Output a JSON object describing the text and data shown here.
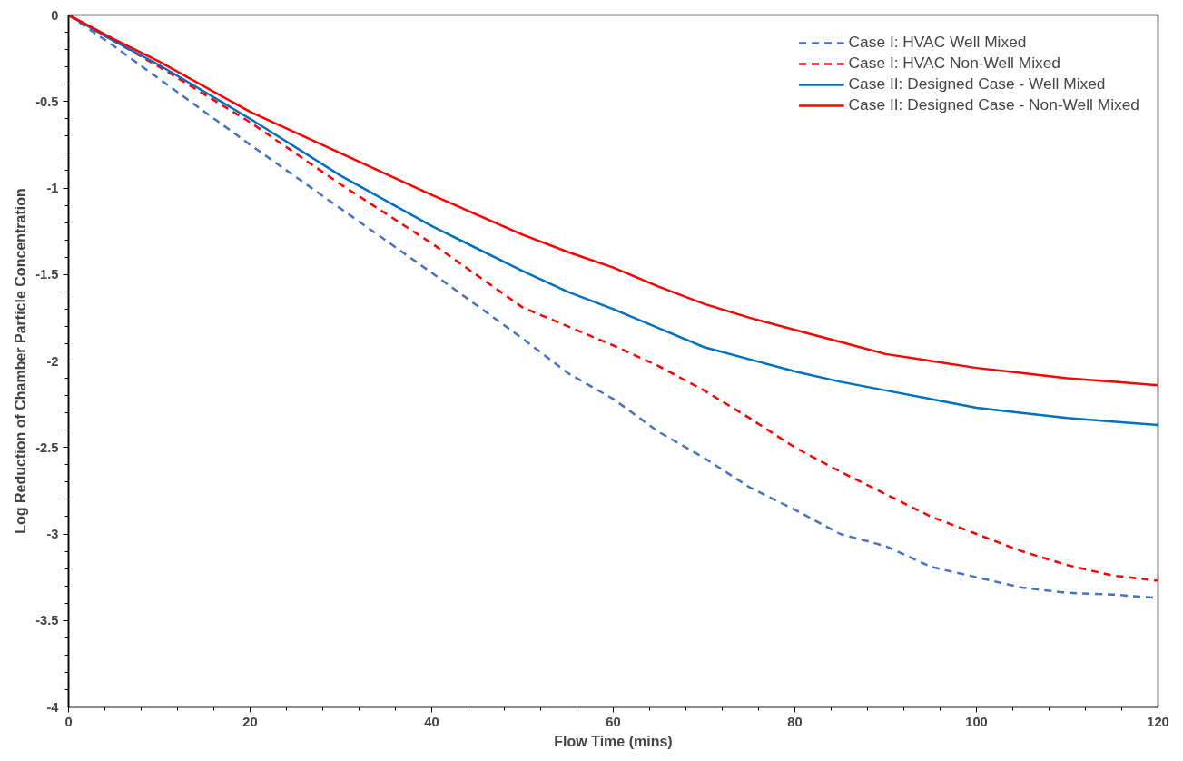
{
  "chart_data": {
    "type": "line",
    "xlabel": "Flow Time (mins)",
    "ylabel": "Log Reduction of Chamber Particle Concentration",
    "xlim": [
      0,
      120
    ],
    "ylim": [
      -4,
      0
    ],
    "xticks": [
      0,
      20,
      40,
      60,
      80,
      100,
      120
    ],
    "yticks": [
      -4,
      -3.5,
      -3,
      -2.5,
      -2,
      -1.5,
      -1,
      -0.5,
      0
    ],
    "x": [
      0,
      5,
      10,
      20,
      30,
      40,
      50,
      55,
      60,
      65,
      70,
      75,
      80,
      85,
      90,
      95,
      100,
      105,
      110,
      115,
      120
    ],
    "series": [
      {
        "name": "Case I: HVAC Well Mixed",
        "color": "#4472c4",
        "line_style": "dashed",
        "values": [
          0,
          -0.18,
          -0.37,
          -0.75,
          -1.12,
          -1.49,
          -1.87,
          -2.07,
          -2.22,
          -2.41,
          -2.56,
          -2.73,
          -2.86,
          -3.0,
          -3.07,
          -3.19,
          -3.25,
          -3.31,
          -3.34,
          -3.35,
          -3.37
        ]
      },
      {
        "name": "Case I: HVAC Non-Well Mixed",
        "color": "#ff0000",
        "line_style": "dashed",
        "values": [
          0,
          -0.15,
          -0.3,
          -0.62,
          -0.98,
          -1.32,
          -1.69,
          -1.8,
          -1.91,
          -2.03,
          -2.17,
          -2.33,
          -2.5,
          -2.64,
          -2.77,
          -2.9,
          -3.0,
          -3.1,
          -3.18,
          -3.24,
          -3.27
        ]
      },
      {
        "name": "Case II: Designed Case - Well Mixed",
        "color": "#0070c0",
        "line_style": "solid",
        "values": [
          0,
          -0.15,
          -0.29,
          -0.6,
          -0.93,
          -1.22,
          -1.48,
          -1.6,
          -1.7,
          -1.81,
          -1.92,
          -1.99,
          -2.06,
          -2.12,
          -2.17,
          -2.22,
          -2.27,
          -2.3,
          -2.33,
          -2.35,
          -2.37
        ]
      },
      {
        "name": "Case II: Designed Case - Non-Well Mixed",
        "color": "#ff0000",
        "line_style": "solid",
        "values": [
          0,
          -0.14,
          -0.27,
          -0.56,
          -0.8,
          -1.04,
          -1.27,
          -1.37,
          -1.46,
          -1.57,
          -1.67,
          -1.75,
          -1.82,
          -1.89,
          -1.96,
          -2.0,
          -2.04,
          -2.07,
          -2.1,
          -2.12,
          -2.14
        ]
      }
    ],
    "legend": "top right",
    "grid": false,
    "marker": "none"
  }
}
